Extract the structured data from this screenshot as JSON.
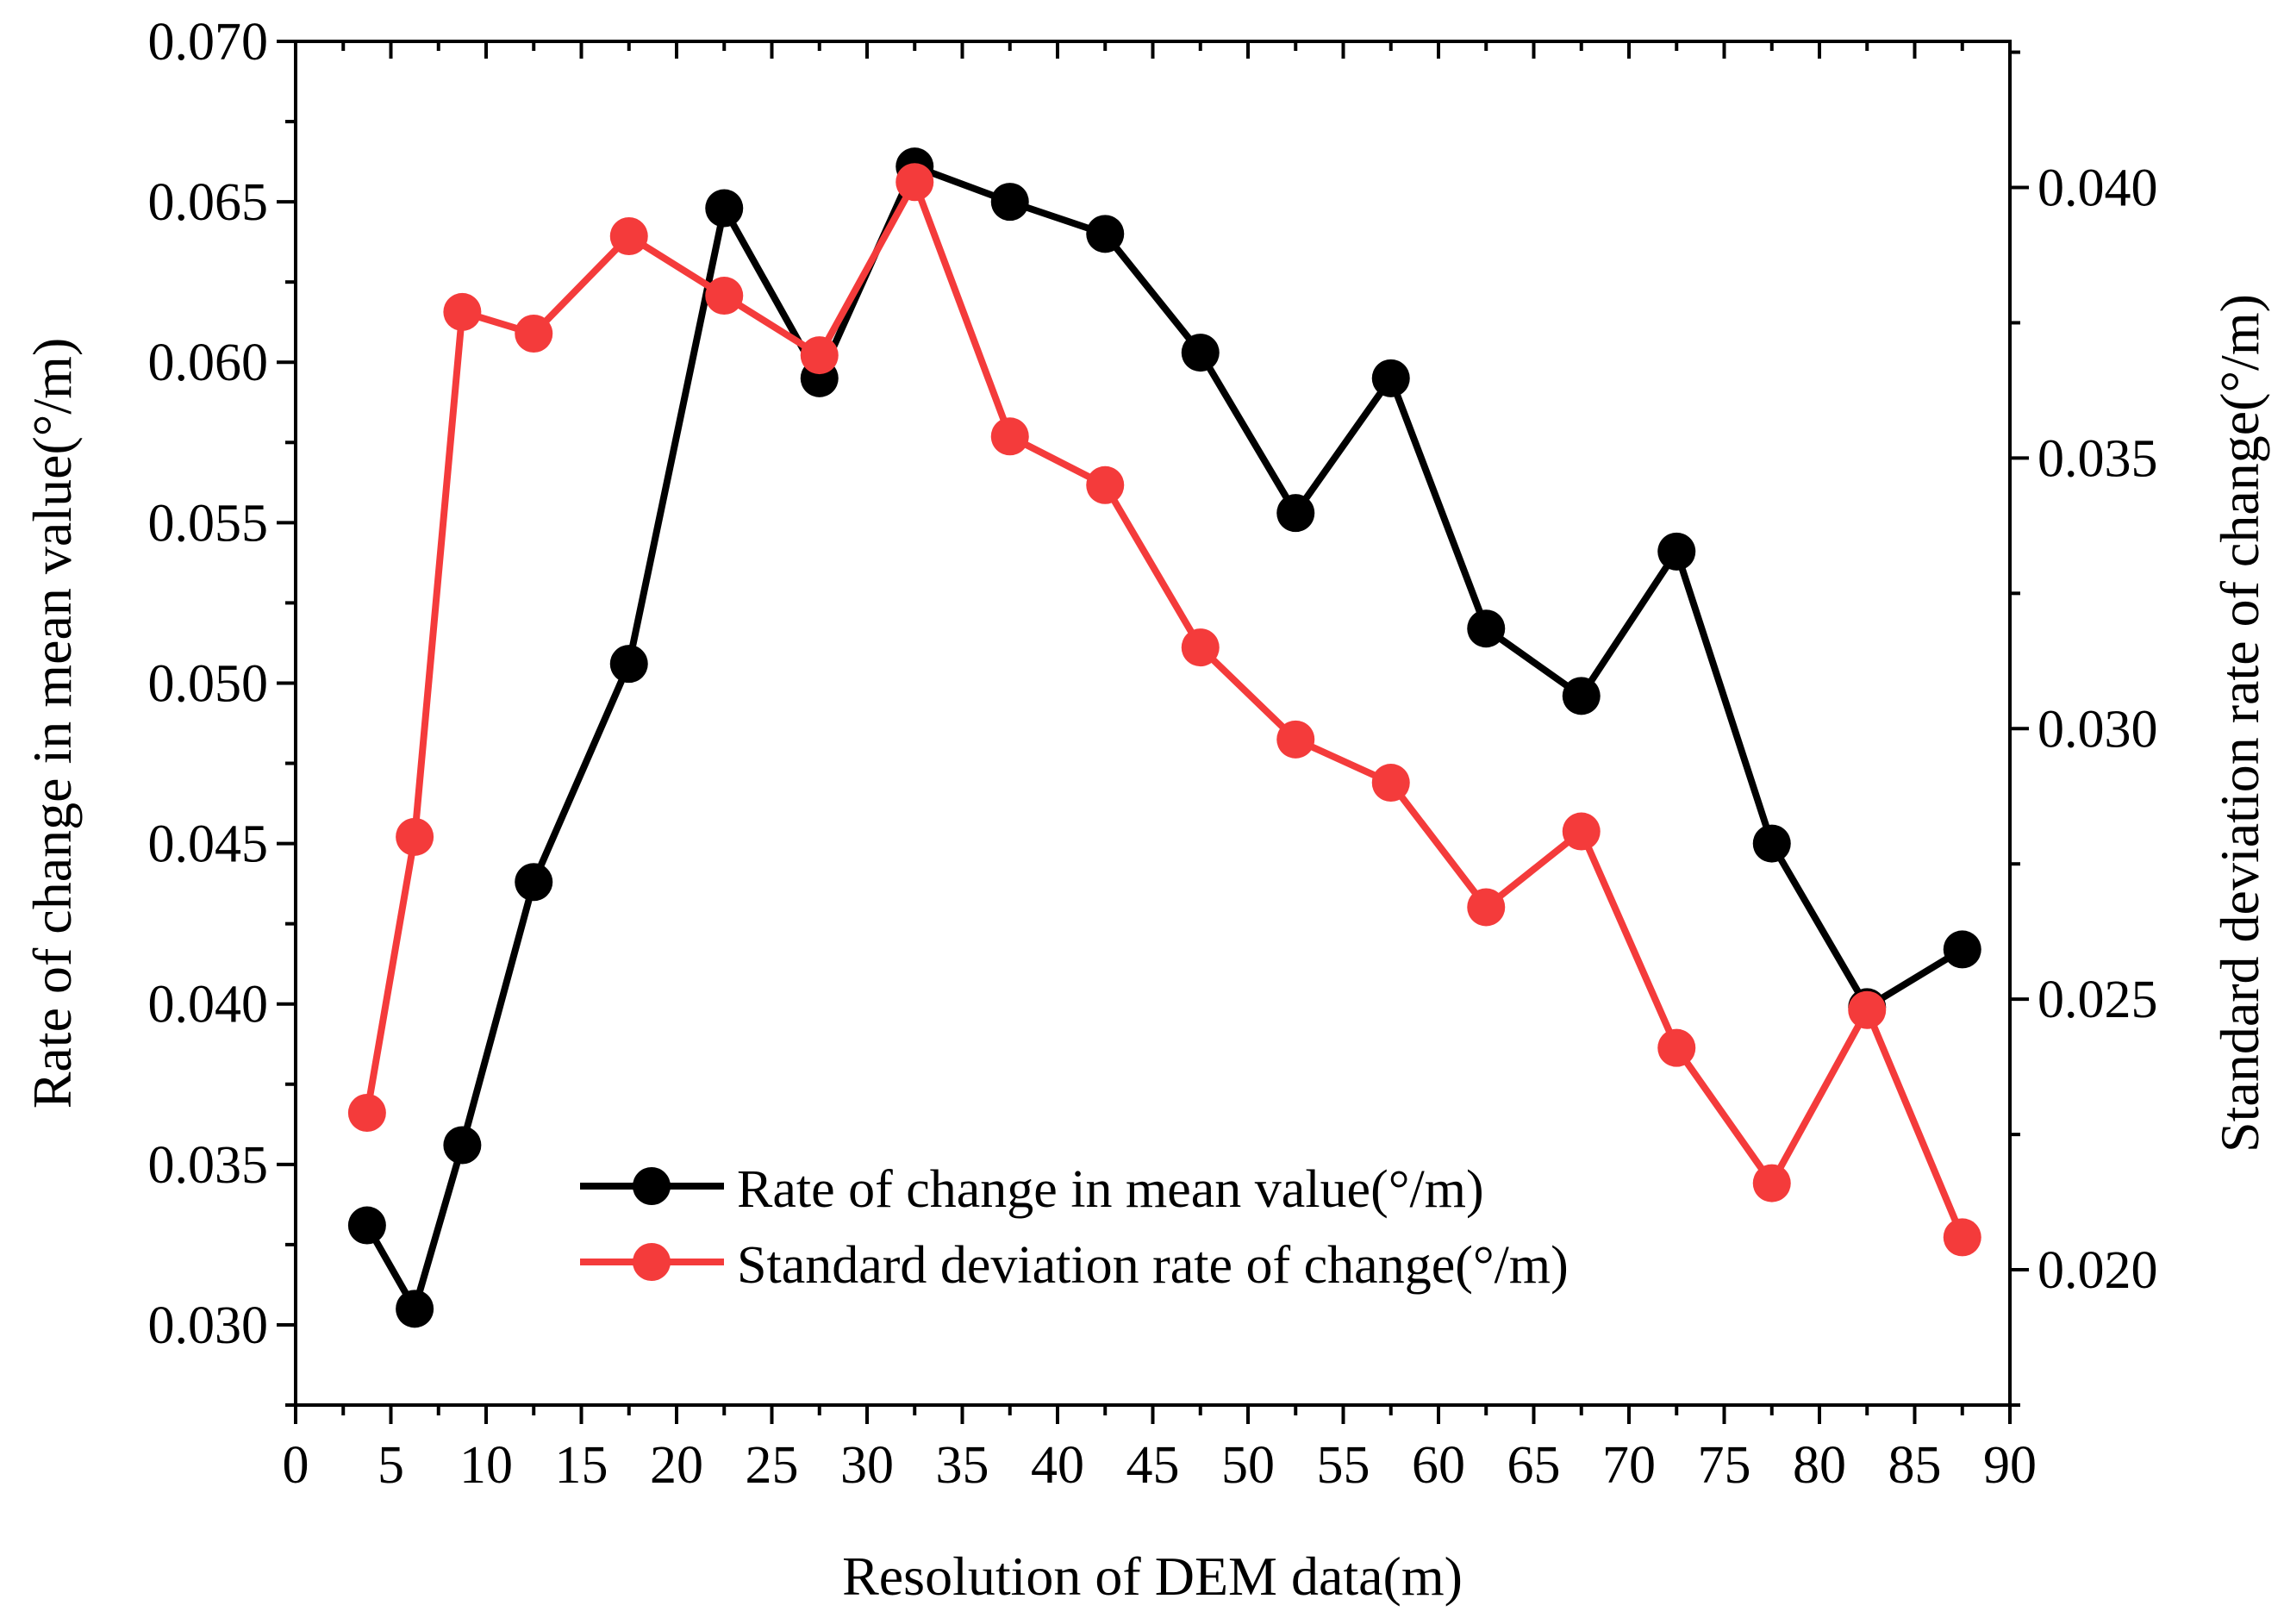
{
  "chart_data": {
    "type": "line",
    "xlabel": "Resolution of DEM data(m)",
    "ylabel_left": "Rate of change in mean value(°/m)",
    "ylabel_right": "Standard deviation rate of change(°/m)",
    "xlim": [
      0,
      90
    ],
    "ylim_left": [
      0.0275,
      0.07
    ],
    "ylim_right": [
      0.0175,
      0.0427
    ],
    "x_ticks": [
      0,
      5,
      10,
      15,
      20,
      25,
      30,
      35,
      40,
      45,
      50,
      55,
      60,
      65,
      70,
      75,
      80,
      85,
      90
    ],
    "x_tick_labels": [
      "0",
      "5",
      "10",
      "15",
      "20",
      "25",
      "30",
      "35",
      "40",
      "45",
      "50",
      "55",
      "60",
      "65",
      "70",
      "75",
      "80",
      "85",
      "90"
    ],
    "y_left_ticks": [
      0.03,
      0.035,
      0.04,
      0.045,
      0.05,
      0.055,
      0.06,
      0.065,
      0.07
    ],
    "y_left_tick_labels": [
      "0.030",
      "0.035",
      "0.040",
      "0.045",
      "0.050",
      "0.055",
      "0.060",
      "0.065",
      "0.070"
    ],
    "y_right_ticks": [
      0.02,
      0.025,
      0.03,
      0.035,
      0.04
    ],
    "y_right_tick_labels": [
      "0.020",
      "0.025",
      "0.030",
      "0.035",
      "0.040"
    ],
    "legend_position": "bottom-center",
    "series": [
      {
        "name": "Rate of change in mean value(°/m)",
        "axis": "left",
        "color": "#000000",
        "x": [
          3.75,
          6.25,
          8.75,
          12.5,
          17.5,
          22.5,
          27.5,
          32.5,
          37.5,
          42.5,
          47.5,
          52.5,
          57.5,
          62.5,
          67.5,
          72.5,
          77.5,
          82.5,
          87.5
        ],
        "values": [
          0.0331,
          0.0305,
          0.0356,
          0.0438,
          0.0506,
          0.0648,
          0.0595,
          0.0661,
          0.065,
          0.064,
          0.0603,
          0.0553,
          0.0595,
          0.0517,
          0.0496,
          0.0541,
          0.045,
          0.0399,
          0.0417
        ]
      },
      {
        "name": "Standard deviation rate of change(°/m)",
        "axis": "right",
        "color": "#f43b3b",
        "x": [
          3.75,
          6.25,
          8.75,
          12.5,
          17.5,
          22.5,
          27.5,
          32.5,
          37.5,
          42.5,
          47.5,
          52.5,
          57.5,
          62.5,
          67.5,
          72.5,
          77.5,
          82.5,
          87.5
        ],
        "values": [
          0.0229,
          0.028,
          0.0377,
          0.0373,
          0.0391,
          0.038,
          0.0369,
          0.0401,
          0.0354,
          0.0345,
          0.0315,
          0.0298,
          0.029,
          0.0267,
          0.0281,
          0.0241,
          0.0216,
          0.0248,
          0.0206
        ]
      }
    ]
  }
}
